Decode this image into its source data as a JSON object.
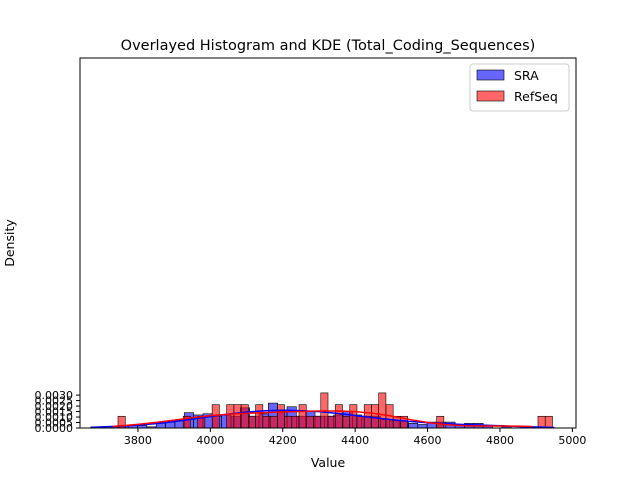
{
  "chart_data": {
    "type": "histogram",
    "title": "Overlayed Histogram and KDE (Total_Coding_Sequences)",
    "xlabel": "Value",
    "ylabel": "Density",
    "xlim": [
      3640,
      5010
    ],
    "ylim": [
      0,
      0.03375
    ],
    "xticks": [
      3800,
      4000,
      4200,
      4400,
      4600,
      4800,
      5000
    ],
    "yticks": [
      0.0,
      0.0005,
      0.001,
      0.0015,
      0.002,
      0.0025,
      0.003
    ],
    "ytick_labels": [
      "0.0000",
      "0.0005",
      "0.0010",
      "0.0015",
      "0.0020",
      "0.0025",
      "0.0030"
    ],
    "grid": false,
    "legend": "top-right",
    "series": [
      {
        "name": "SRA",
        "color": "#0000ff",
        "alpha": 0.6,
        "bin_start": 3670,
        "bin_width": 25.8,
        "density": [
          0.00011,
          0,
          0.00011,
          0.00022,
          0.00022,
          0.00022,
          0.00011,
          0.00043,
          0.00054,
          0.0007,
          0.0014,
          0.00119,
          0.0013,
          0.00108,
          0.00119,
          0.00108,
          0.00184,
          0.00108,
          0.00129,
          0.00227,
          0.00151,
          0.00194,
          0.00108,
          0.00151,
          0.00108,
          0.00108,
          0.00119,
          0.00151,
          0.00119,
          0.00108,
          0.00108,
          0.00076,
          0.00065,
          0.00065,
          0.00043,
          0.00032,
          0.00054,
          0.00054,
          0.00054,
          0.00032,
          0.00043,
          0.00043,
          0.00022,
          0,
          0.00011,
          0,
          0.00011
        ],
        "kde": {
          "x": [
            3670,
            3700,
            3750,
            3800,
            3850,
            3900,
            3950,
            4000,
            4050,
            4100,
            4150,
            4200,
            4250,
            4300,
            4350,
            4400,
            4450,
            4500,
            4550,
            4600,
            4650,
            4700,
            4750,
            4800,
            4850,
            4900,
            4950
          ],
          "y": [
            6e-05,
            0.0001,
            0.00017,
            0.00026,
            0.0004,
            0.00058,
            0.00081,
            0.00105,
            0.00127,
            0.00145,
            0.00157,
            0.00162,
            0.00159,
            0.00149,
            0.00133,
            0.00114,
            0.00094,
            0.00076,
            0.0006,
            0.00048,
            0.00039,
            0.00032,
            0.00026,
            0.0002,
            0.00014,
            9e-05,
            5e-05
          ]
        }
      },
      {
        "name": "RefSeq",
        "color": "#ff0000",
        "alpha": 0.6,
        "bin_start": 3725,
        "bin_width": 20.0,
        "density": [
          0,
          0.00107,
          0,
          0,
          0,
          0,
          0,
          0,
          0,
          0,
          0.00107,
          0,
          0.00107,
          0,
          0.00213,
          0,
          0.00213,
          0.00213,
          0.00213,
          0.00107,
          0.00213,
          0.00107,
          0.00107,
          0.00213,
          0.00107,
          0.00107,
          0.00213,
          0.00107,
          0.00107,
          0.0032,
          0.00107,
          0.00213,
          0.00107,
          0.00213,
          0.00107,
          0.00213,
          0.00213,
          0.0032,
          0.00213,
          0.00107,
          0.00107,
          0,
          0,
          0,
          0,
          0.00107,
          0,
          0,
          0,
          0,
          0,
          0,
          0,
          0,
          0,
          0,
          0,
          0,
          0,
          0.00107,
          0.00107
        ],
        "kde": {
          "x": [
            3730,
            3750,
            3800,
            3850,
            3900,
            3950,
            4000,
            4050,
            4100,
            4150,
            4200,
            4250,
            4300,
            4350,
            4400,
            4450,
            4500,
            4550,
            4600,
            4650,
            4700,
            4750,
            4800,
            4850,
            4890
          ],
          "y": [
            0.00014,
            0.00019,
            0.00033,
            0.00051,
            0.00072,
            0.00094,
            0.00113,
            0.00126,
            0.00134,
            0.0014,
            0.00146,
            0.00151,
            0.00155,
            0.00155,
            0.00149,
            0.00134,
            0.00109,
            0.00078,
            0.0005,
            0.00031,
            0.00021,
            0.00018,
            0.00018,
            0.00017,
            0.00014
          ]
        }
      }
    ]
  }
}
